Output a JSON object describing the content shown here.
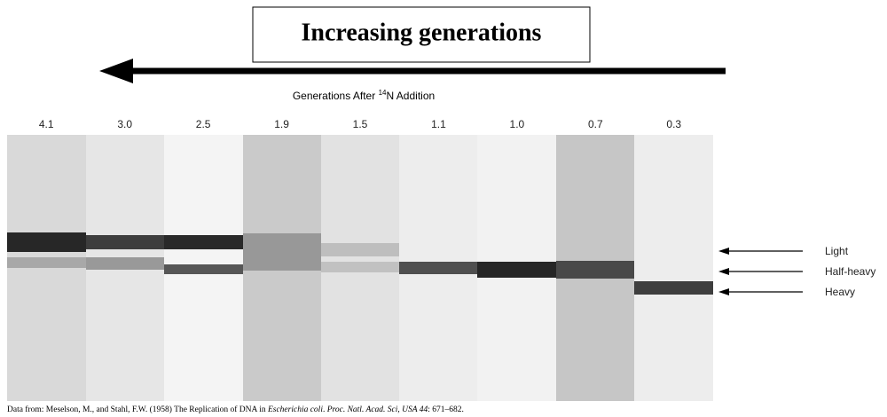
{
  "header": {
    "title": "Increasing generations"
  },
  "figure": {
    "axis_title": {
      "before": "Generations After ",
      "superscript": "14",
      "after": "N Addition"
    },
    "lanes": [
      "4.1",
      "3.0",
      "2.5",
      "1.9",
      "1.5",
      "1.1",
      "1.0",
      "0.7",
      "0.3"
    ],
    "band_labels": [
      "Light",
      "Half-heavy",
      "Heavy"
    ]
  },
  "citation": {
    "lead": "Data from: Meselson, M., and Stahl, F.W. (1958) The Replication of DNA in ",
    "species": "Escherichia coli",
    "mid": ". ",
    "journal": "Proc. Natl. Acad. Sci, USA 44",
    "tail": ": 671–682."
  }
}
